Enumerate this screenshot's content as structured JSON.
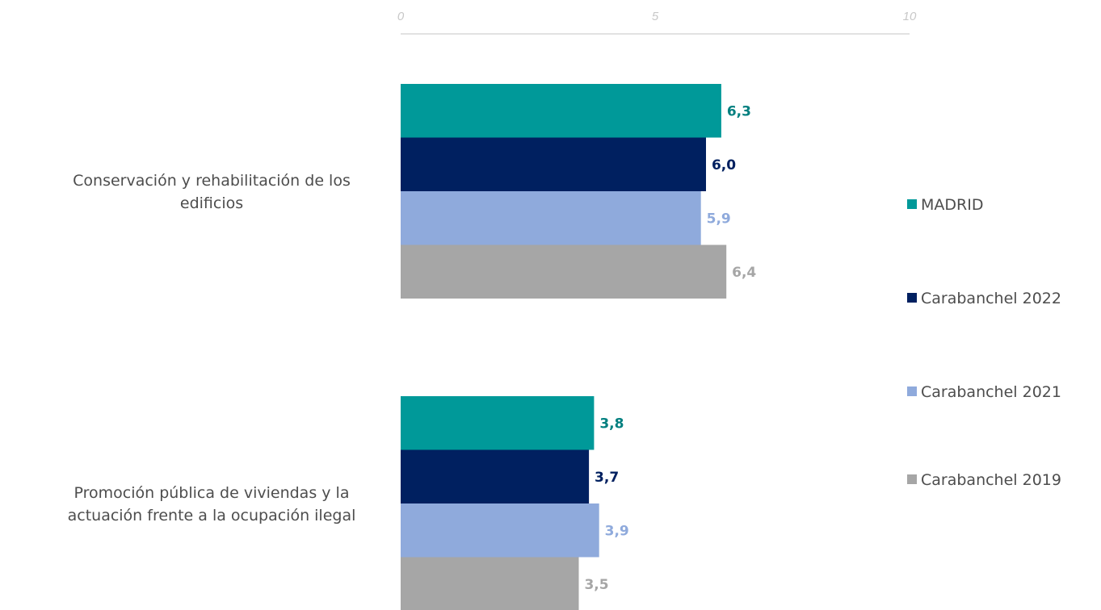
{
  "chart_data": {
    "type": "bar",
    "orientation": "horizontal",
    "categories": [
      "Conservación y rehabilitación de los edificios",
      "Promoción pública de viviendas y la actuación  frente a la ocupación ilegal"
    ],
    "category_lines": [
      [
        "Conservación y rehabilitación de los",
        "edificios"
      ],
      [
        "Promoción pública de viviendas y la",
        "actuación  frente a la ocupación ilegal"
      ]
    ],
    "series": [
      {
        "name": "MADRID",
        "values": [
          6.3,
          3.8
        ],
        "labels": [
          "6,3",
          "3,8"
        ],
        "color": "#009999",
        "label_color": "#007f7f"
      },
      {
        "name": "Carabanchel 2022",
        "values": [
          6.0,
          3.7
        ],
        "labels": [
          "6,0",
          "3,7"
        ],
        "color": "#002060",
        "label_color": "#002060"
      },
      {
        "name": "Carabanchel 2021",
        "values": [
          5.9,
          3.9
        ],
        "labels": [
          "5,9",
          "3,9"
        ],
        "color": "#8faadc",
        "label_color": "#8faadc"
      },
      {
        "name": "Carabanchel 2019",
        "values": [
          6.4,
          3.5
        ],
        "labels": [
          "6,4",
          "3,5"
        ],
        "color": "#a6a6a6",
        "label_color": "#a6a6a6"
      }
    ],
    "xlim": [
      0,
      10
    ],
    "xticks": [
      "0",
      "5",
      "10"
    ],
    "title": "",
    "xlabel": "",
    "ylabel": "",
    "grid": false,
    "legend_position": "right"
  }
}
